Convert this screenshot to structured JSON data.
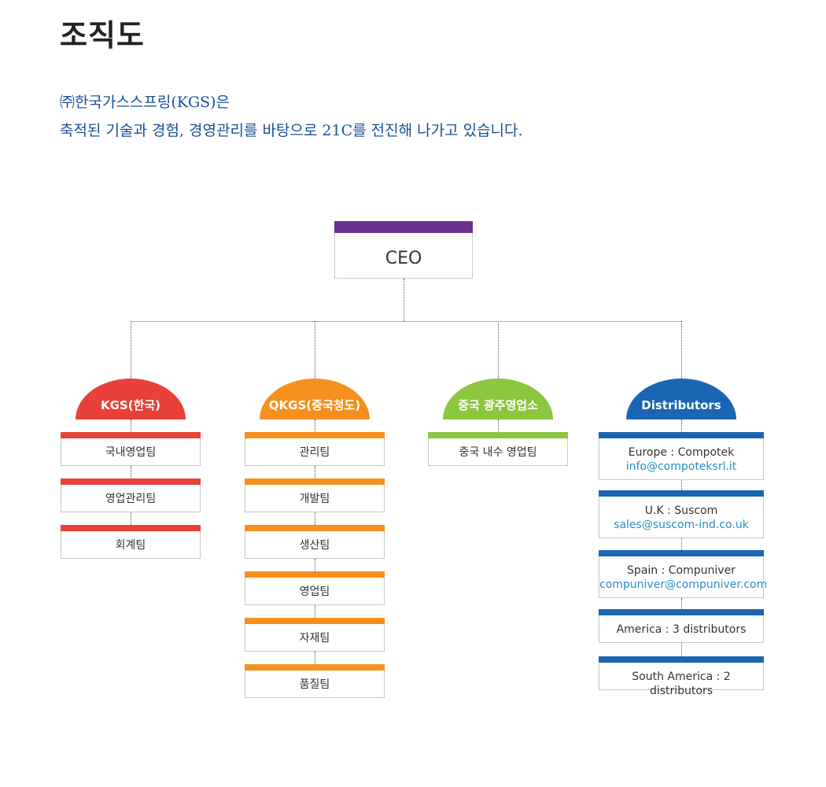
{
  "page": {
    "title": "조직도",
    "intro_line1": "㈜한국가스스프링(KGS)은",
    "intro_line2": "축적된 기술과 경험, 경영관리를 바탕으로 21C를 전진해 나가고 있습니다."
  },
  "colors": {
    "ceo": "#6a2f8f",
    "kgs": "#e8413a",
    "qkgs": "#f5901e",
    "china_sales": "#8cc63f",
    "distributors": "#1a66b3"
  },
  "ceo": {
    "label": "CEO"
  },
  "branches": [
    {
      "name": "KGS(한국)",
      "color_key": "kgs",
      "items": [
        "국내영업팀",
        "영업관리팀",
        "회계팀"
      ]
    },
    {
      "name": "QKGS(중국청도)",
      "color_key": "qkgs",
      "items": [
        "관리팀",
        "개발팀",
        "생산팀",
        "영업팀",
        "자재팀",
        "품질팀"
      ]
    },
    {
      "name": "중국 광주영업소",
      "color_key": "china_sales",
      "items": [
        "중국 내수 영업팀"
      ]
    },
    {
      "name": "Distributors",
      "color_key": "distributors",
      "items": [
        {
          "line1": "Europe : Compotek",
          "line2": "info@compoteksrl.it"
        },
        {
          "line1": "U.K : Suscom",
          "line2": "sales@suscom-ind.co.uk"
        },
        {
          "line1": "Spain : Compuniver",
          "line2": "compuniver@compuniver.com"
        },
        {
          "line1": "America : 3 distributors"
        },
        {
          "line1": "South America : 2 distributors"
        }
      ]
    }
  ]
}
